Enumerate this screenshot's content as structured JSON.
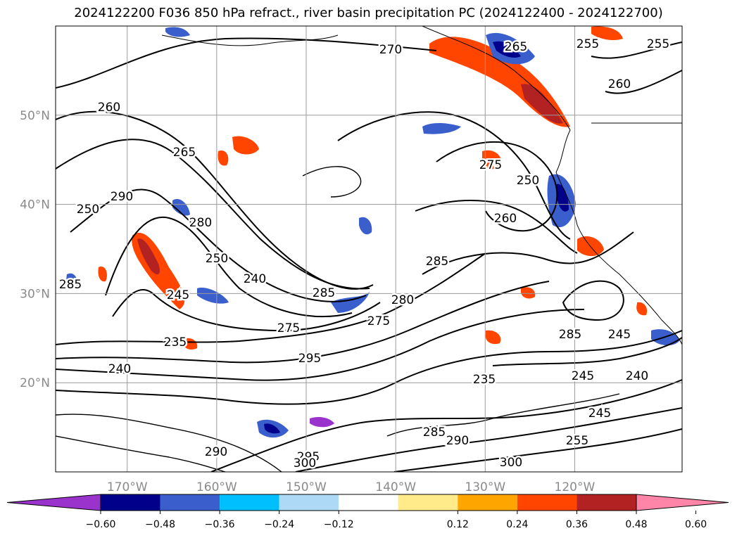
{
  "title": "2024122200 F036 850 hPa refract., river basin precipitation PC (2024122400 - 2024122700)",
  "chart_data": {
    "type": "contour-map",
    "title": "2024122200 F036 850 hPa refract., river basin precipitation PC (2024122400 - 2024122700)",
    "lat_ticks": [
      "20°N",
      "30°N",
      "40°N",
      "50°N"
    ],
    "lon_ticks": [
      "170°W",
      "160°W",
      "150°W",
      "140°W",
      "130°W",
      "120°W"
    ],
    "lat_range": [
      10,
      60
    ],
    "lon_range": [
      -178,
      -108
    ],
    "grid": true,
    "contour_labels": [
      "270",
      "265",
      "255",
      "255",
      "260",
      "260",
      "265",
      "290",
      "280",
      "250",
      "240",
      "245",
      "235",
      "285",
      "275",
      "250",
      "260",
      "285",
      "280",
      "275",
      "285",
      "245",
      "235",
      "245",
      "240",
      "245",
      "255",
      "290",
      "295",
      "300",
      "285",
      "300",
      "290",
      "295",
      "240",
      "250",
      "275",
      "285"
    ],
    "colorbar": {
      "extend": "both",
      "ticks": [
        "−0.60",
        "−0.48",
        "−0.36",
        "−0.24",
        "−0.12",
        "0.12",
        "0.24",
        "0.36",
        "0.48",
        "0.60"
      ],
      "colors": [
        "#9a33cc",
        "#00008b",
        "#3a5fcd",
        "#00bfff",
        "#add8f6",
        "#ffffff",
        "#ffeb8a",
        "#ffa500",
        "#ff4500",
        "#b22222",
        "#ff85a8"
      ]
    }
  }
}
